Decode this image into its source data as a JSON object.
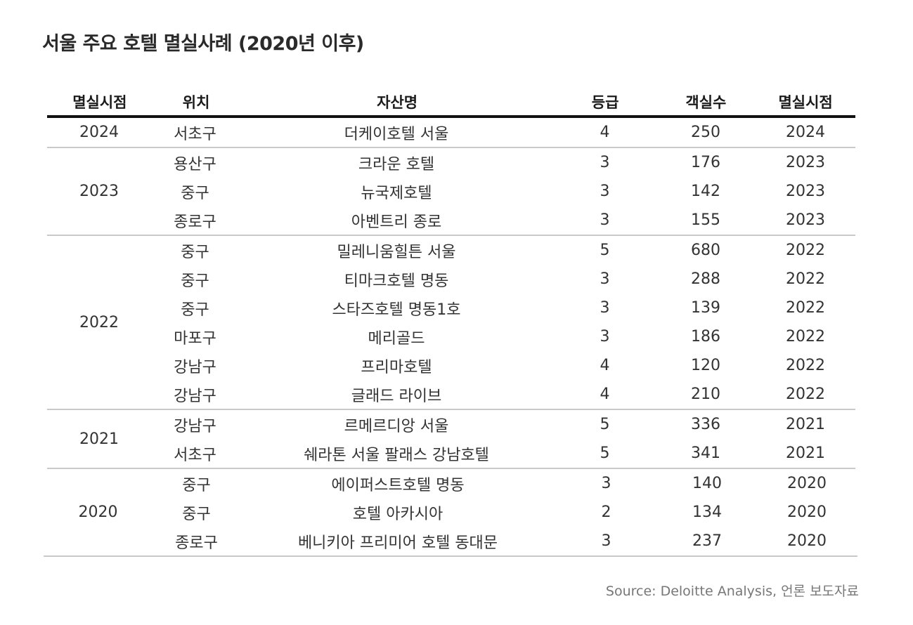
{
  "title": "서울 주요 호텔 멸실사례 (2020년 이후)",
  "headers": [
    "멸실시점",
    "위치",
    "자산명",
    "등급",
    "객실수",
    "멸실시점"
  ],
  "groups": [
    {
      "year": "2024",
      "rows": [
        {
          "location": "서초구",
          "name": "더케이호텔 서울",
          "grade": "4",
          "rooms": "250",
          "year": "2024"
        }
      ]
    },
    {
      "year": "2023",
      "rows": [
        {
          "location": "용산구",
          "name": "크라운 호텔",
          "grade": "3",
          "rooms": "176",
          "year": "2023"
        },
        {
          "location": "중구",
          "name": "뉴국제호텔",
          "grade": "3",
          "rooms": "142",
          "year": "2023"
        },
        {
          "location": "종로구",
          "name": "아벤트리 종로",
          "grade": "3",
          "rooms": "155",
          "year": "2023"
        }
      ]
    },
    {
      "year": "2022",
      "rows": [
        {
          "location": "중구",
          "name": "밀레니움힐튼 서울",
          "grade": "5",
          "rooms": "680",
          "year": "2022"
        },
        {
          "location": "중구",
          "name": "티마크호텔 명동",
          "grade": "3",
          "rooms": "288",
          "year": "2022"
        },
        {
          "location": "중구",
          "name": "스타즈호텔 명동1호",
          "grade": "3",
          "rooms": "139",
          "year": "2022"
        },
        {
          "location": "마포구",
          "name": "메리골드",
          "grade": "3",
          "rooms": "186",
          "year": "2022"
        },
        {
          "location": "강남구",
          "name": "프리마호텔",
          "grade": "4",
          "rooms": "120",
          "year": "2022"
        },
        {
          "location": "강남구",
          "name": "글래드 라이브",
          "grade": "4",
          "rooms": "210",
          "year": "2022"
        }
      ]
    },
    {
      "year": "2021",
      "rows": [
        {
          "location": "강남구",
          "name": "르메르디앙 서울",
          "grade": "5",
          "rooms": "336",
          "year": "2021"
        },
        {
          "location": "서초구",
          "name": "쉐라톤 서울 팔래스 강남호텔",
          "grade": "5",
          "rooms": "341",
          "year": "2021"
        }
      ]
    },
    {
      "year": "2020",
      "rows": [
        {
          "location": "중구",
          "name": "에이퍼스트호텔 명동",
          "grade": "3",
          "rooms": "140",
          "year": "2020"
        },
        {
          "location": "중구",
          "name": "호텔 아카시아",
          "grade": "2",
          "rooms": "134",
          "year": "2020"
        },
        {
          "location": "종로구",
          "name": "베니키아 프리미어 호텔 동대문",
          "grade": "3",
          "rooms": "237",
          "year": "2020"
        }
      ]
    }
  ],
  "source": "Source: Deloitte Analysis, 언론 보도자료"
}
